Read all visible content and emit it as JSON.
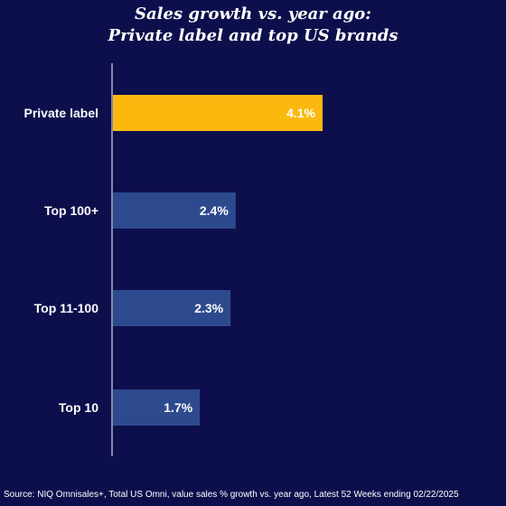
{
  "chart_data": {
    "type": "bar",
    "orientation": "horizontal",
    "title_lines": [
      "Sales growth vs. year ago:",
      "Private label and top US brands"
    ],
    "categories": [
      "Private label",
      "Top 100+",
      "Top 11-100",
      "Top 10"
    ],
    "values": [
      4.1,
      2.4,
      2.3,
      1.7
    ],
    "value_labels": [
      "4.1%",
      "2.4%",
      "2.3%",
      "1.7%"
    ],
    "bar_colors": [
      "#fbb80f",
      "#2e4a8e",
      "#2e4a8e",
      "#2e4a8e"
    ],
    "xlim": [
      0,
      4.1
    ],
    "grid": false
  },
  "source": "Source: NIQ Omnisales+, Total US Omni, value sales % growth vs. year ago, Latest 52 Weeks ending 02/22/2025",
  "colors": {
    "background": "#0d0f4c",
    "axis": "#ffffff",
    "text": "#ffffff"
  }
}
